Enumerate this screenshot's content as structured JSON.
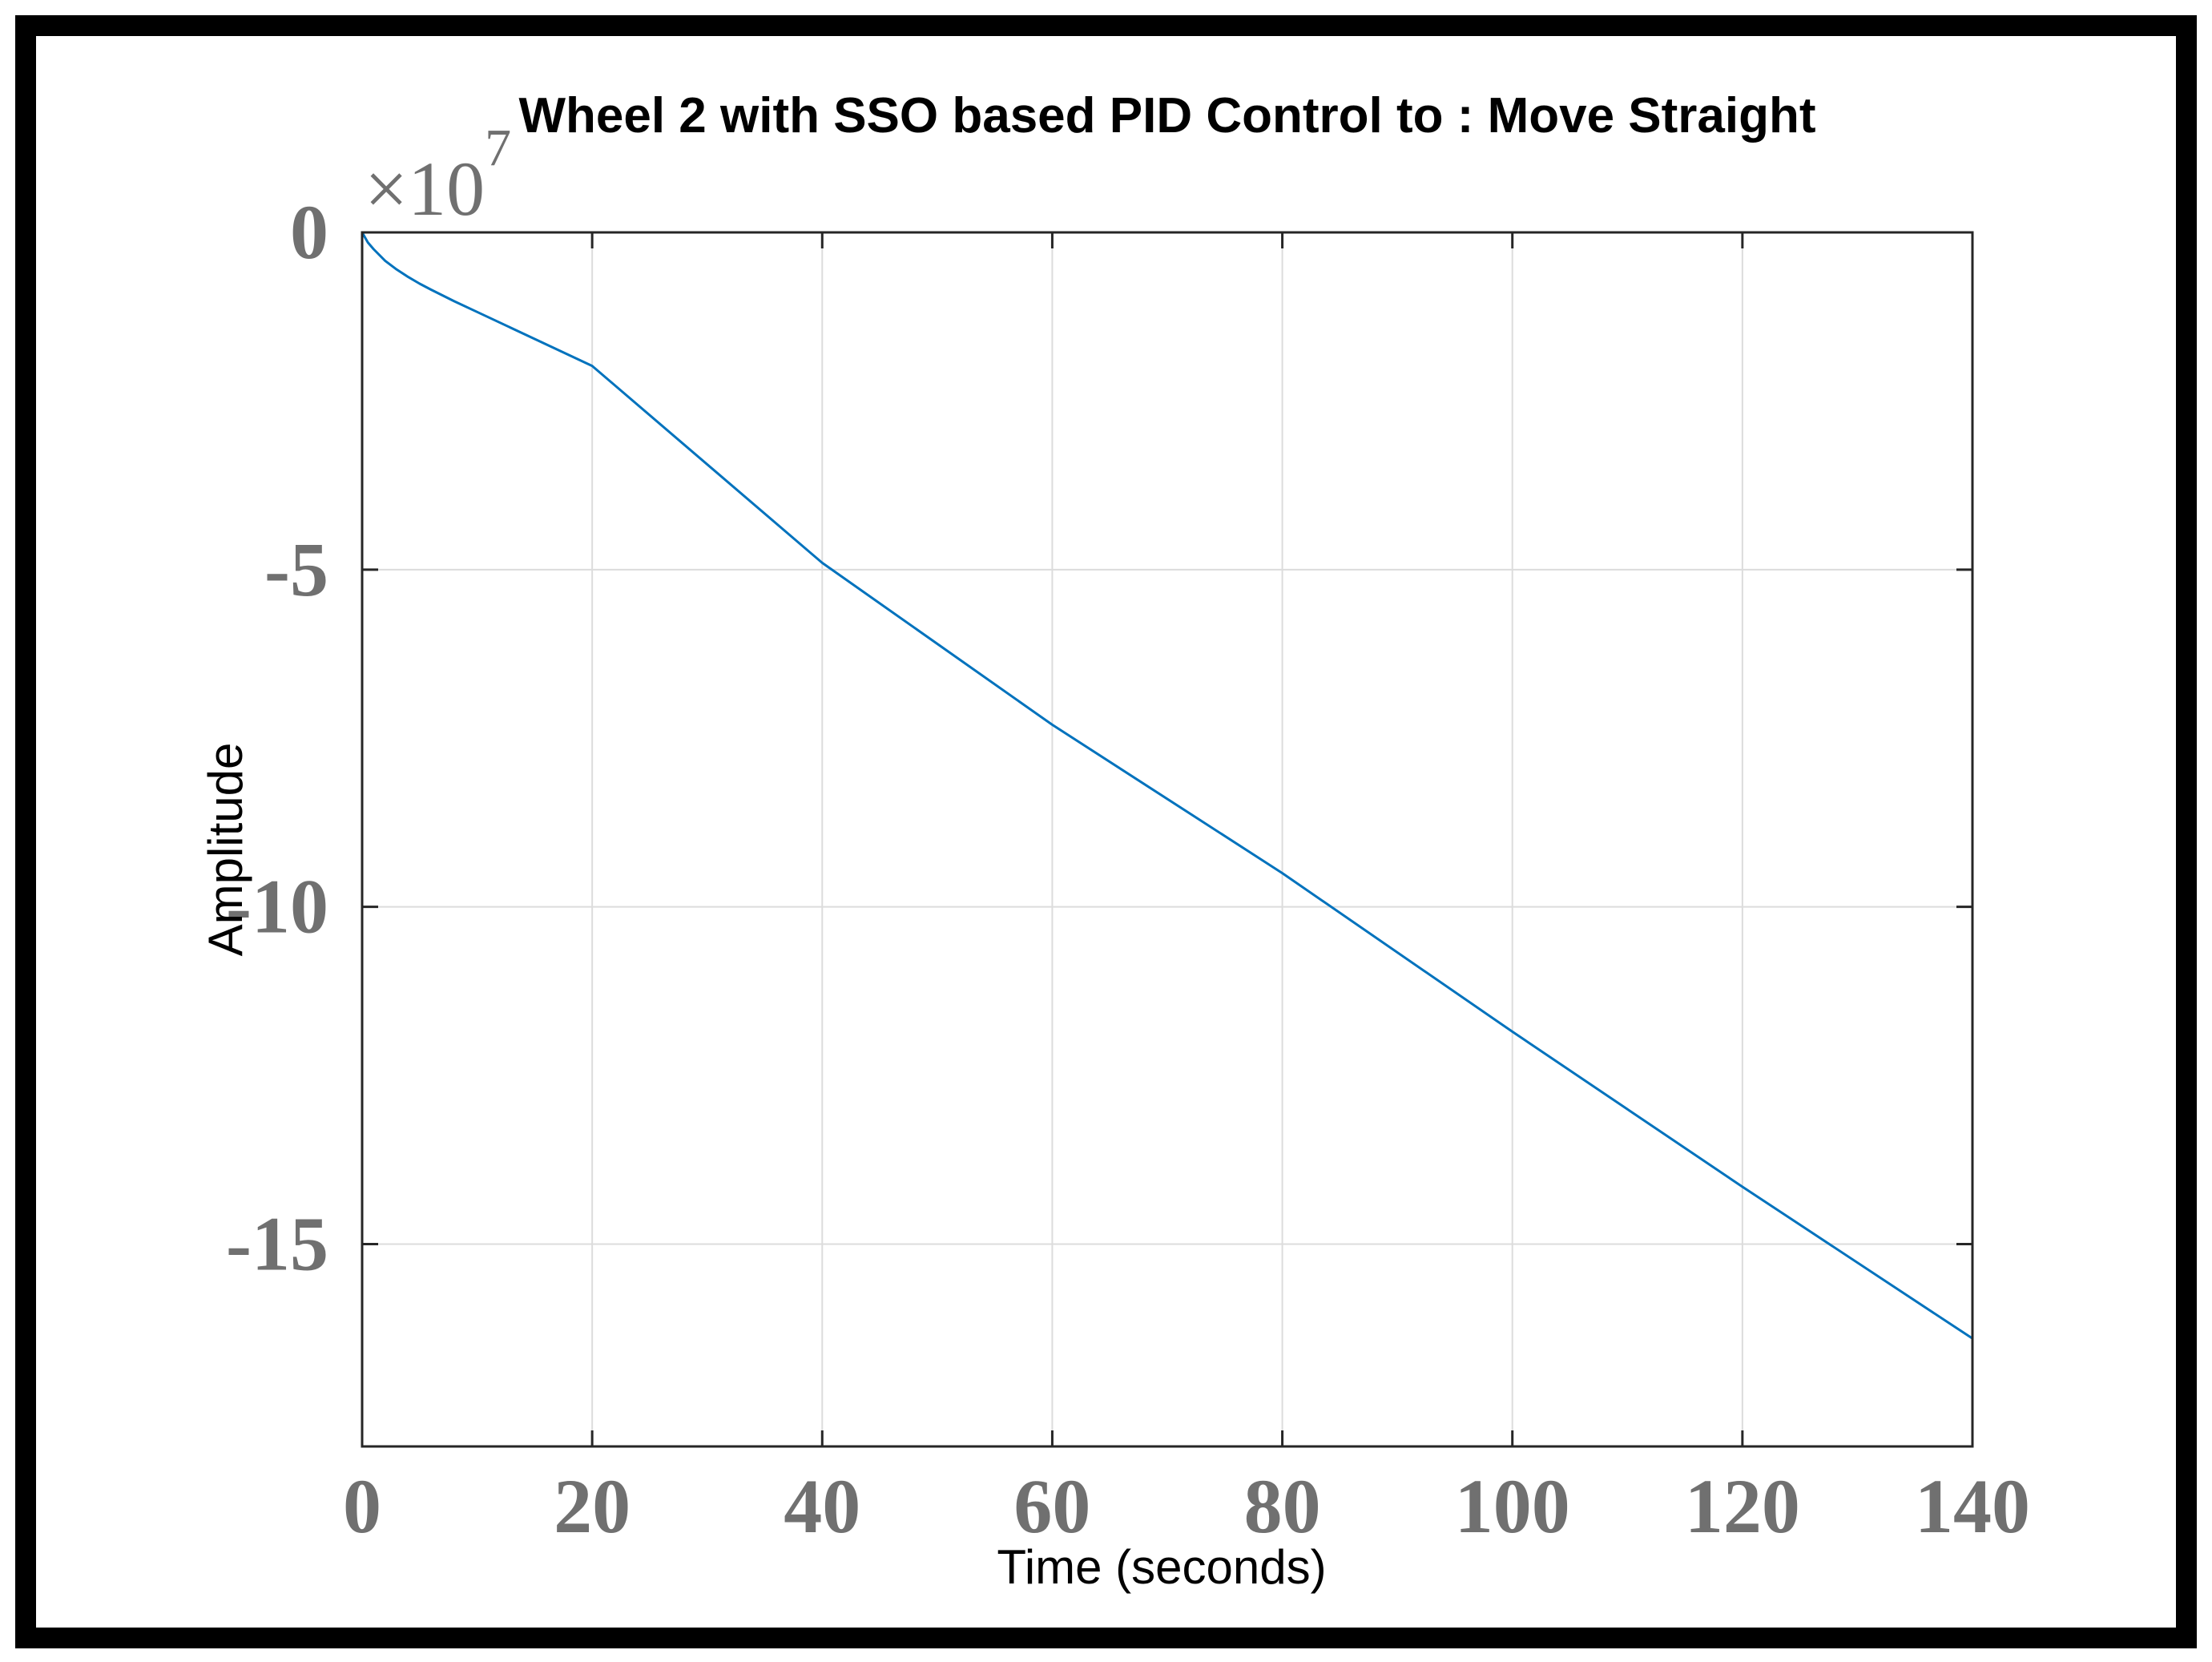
{
  "chart_data": {
    "type": "line",
    "title": "Wheel 2 with SSO based PID Control to : Move Straight",
    "xlabel": "Time (seconds)",
    "ylabel": "Amplitude",
    "y_exponent_base": "×10",
    "y_exponent_power": "7",
    "xlim": [
      0,
      140
    ],
    "ylim": [
      -18,
      0
    ],
    "grid": true,
    "x_ticks": [
      0,
      20,
      40,
      60,
      80,
      100,
      120,
      140
    ],
    "x_tick_labels": [
      "0",
      "20",
      "40",
      "60",
      "80",
      "100",
      "120",
      "140"
    ],
    "y_ticks": [
      0,
      -5,
      -10,
      -15
    ],
    "y_tick_labels": [
      "0",
      "-5",
      "-10",
      "-15"
    ],
    "series": [
      {
        "name": "Wheel 2",
        "color": "#0072BD",
        "x": [
          0,
          0.5,
          1,
          2,
          3,
          4,
          5,
          6,
          8,
          10,
          15,
          20,
          40,
          60,
          80,
          100,
          120,
          140
        ],
        "y": [
          0,
          -0.15,
          -0.25,
          -0.42,
          -0.55,
          -0.66,
          -0.76,
          -0.85,
          -1.02,
          -1.18,
          -1.58,
          -1.98,
          -4.9,
          -7.3,
          -9.5,
          -11.85,
          -14.15,
          -16.4
        ]
      }
    ]
  }
}
